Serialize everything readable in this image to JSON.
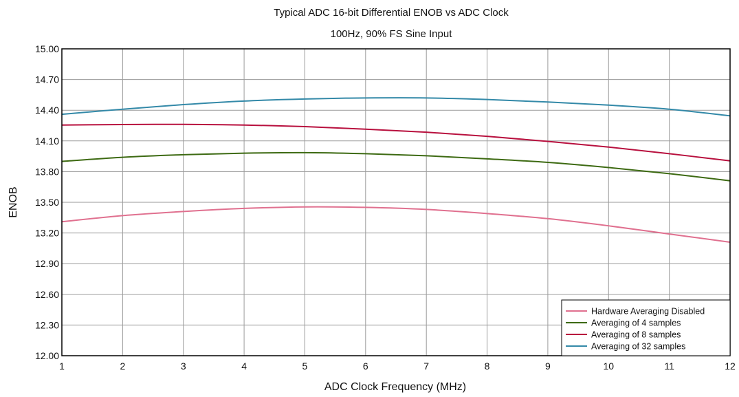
{
  "chart_data": {
    "type": "line",
    "title": "Typical ADC 16-bit Differential ENOB vs ADC Clock",
    "subtitle": "100Hz, 90% FS Sine Input",
    "xlabel": "ADC Clock Frequency (MHz)",
    "ylabel": "ENOB",
    "xlim": [
      1,
      12
    ],
    "ylim": [
      12.0,
      15.0
    ],
    "x_ticks": [
      "1",
      "2",
      "3",
      "4",
      "5",
      "6",
      "7",
      "8",
      "9",
      "10",
      "11",
      "12"
    ],
    "y_ticks": [
      "12.00",
      "12.30",
      "12.60",
      "12.90",
      "13.20",
      "13.50",
      "13.80",
      "14.10",
      "14.40",
      "14.70",
      "15.00"
    ],
    "grid": true,
    "legend_position": "bottom-right",
    "x": [
      1,
      2,
      3,
      4,
      5,
      6,
      7,
      8,
      9,
      10,
      11,
      12
    ],
    "series": [
      {
        "name": "Hardware Averaging Disabled",
        "color": "#e0708f",
        "values": [
          13.31,
          13.37,
          13.41,
          13.44,
          13.455,
          13.45,
          13.43,
          13.39,
          13.34,
          13.27,
          13.19,
          13.11
        ]
      },
      {
        "name": "Averaging of 4 samples",
        "color": "#3d6a12",
        "values": [
          13.9,
          13.94,
          13.965,
          13.98,
          13.985,
          13.975,
          13.955,
          13.925,
          13.89,
          13.84,
          13.78,
          13.71
        ]
      },
      {
        "name": "Averaging of 8 samples",
        "color": "#b8103e",
        "values": [
          14.255,
          14.26,
          14.262,
          14.255,
          14.24,
          14.215,
          14.185,
          14.145,
          14.095,
          14.04,
          13.975,
          13.905
        ]
      },
      {
        "name": "Averaging of 32 samples",
        "color": "#3389a8",
        "values": [
          14.36,
          14.41,
          14.455,
          14.49,
          14.51,
          14.52,
          14.52,
          14.505,
          14.48,
          14.45,
          14.41,
          14.345
        ]
      }
    ]
  }
}
